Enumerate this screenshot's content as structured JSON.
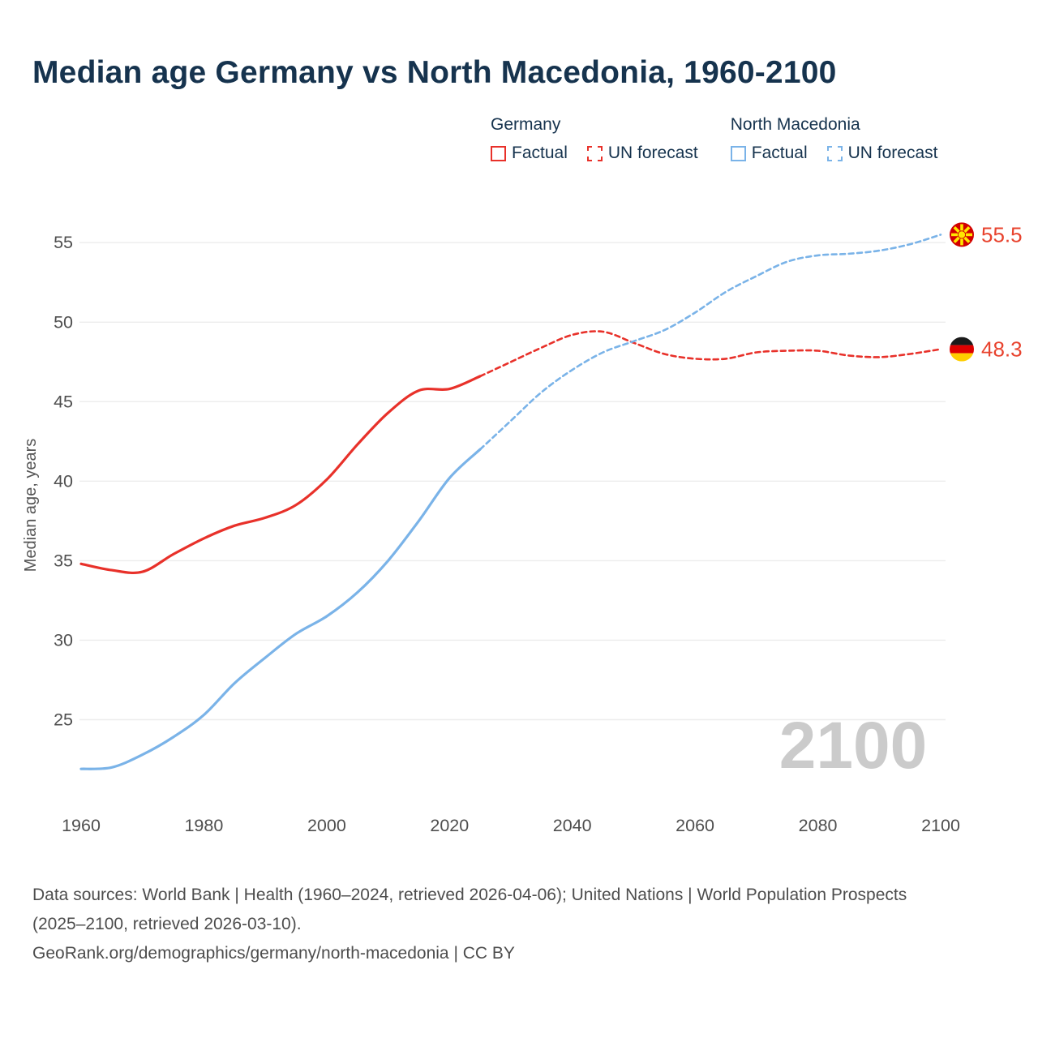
{
  "header": {
    "title": "Median age Germany vs North Macedonia, 1960-2100"
  },
  "legend": {
    "groups": [
      {
        "label": "Germany",
        "color": "#e8312a",
        "items": [
          {
            "label": "Factual",
            "style": "solid"
          },
          {
            "label": "UN forecast",
            "style": "dashed"
          }
        ]
      },
      {
        "label": "North Macedonia",
        "color": "#7ab3e8",
        "items": [
          {
            "label": "Factual",
            "style": "solid"
          },
          {
            "label": "UN forecast",
            "style": "dashed"
          }
        ]
      }
    ]
  },
  "watermark": "2100",
  "footer": {
    "sources": "Data sources: World Bank | Health (1960–2024, retrieved 2026-04-06); United Nations | World Population Prospects (2025–2100, retrieved 2026-03-10).",
    "attribution": "GeoRank.org/demographics/germany/north-macedonia | CC BY"
  },
  "chart_data": {
    "type": "line",
    "title": "Median age Germany vs North Macedonia, 1960-2100",
    "xlabel": "",
    "ylabel": "Median age, years",
    "x": [
      1960,
      1965,
      1970,
      1975,
      1980,
      1985,
      1990,
      1995,
      2000,
      2005,
      2010,
      2015,
      2020,
      2025,
      2030,
      2035,
      2040,
      2045,
      2050,
      2055,
      2060,
      2065,
      2070,
      2075,
      2080,
      2085,
      2090,
      2095,
      2100
    ],
    "forecast_from": 2025,
    "series": [
      {
        "name": "Germany",
        "color": "#e8312a",
        "flag": "de",
        "end_label": "48.3",
        "end_label_color": "#e8432e",
        "values": [
          34.8,
          34.4,
          34.3,
          35.4,
          36.4,
          37.2,
          37.7,
          38.5,
          40.1,
          42.3,
          44.3,
          45.7,
          45.8,
          46.6,
          47.5,
          48.4,
          49.2,
          49.4,
          48.7,
          48.0,
          47.7,
          47.7,
          48.1,
          48.2,
          48.2,
          47.9,
          47.8,
          48.0,
          48.3
        ]
      },
      {
        "name": "North Macedonia",
        "color": "#7ab3e8",
        "flag": "mk",
        "end_label": "55.5",
        "end_label_color": "#e8432e",
        "values": [
          21.9,
          22.0,
          22.8,
          23.9,
          25.3,
          27.3,
          28.9,
          30.4,
          31.5,
          33.0,
          35.0,
          37.5,
          40.2,
          42.0,
          43.8,
          45.6,
          47.0,
          48.1,
          48.8,
          49.5,
          50.6,
          51.9,
          52.9,
          53.8,
          54.2,
          54.3,
          54.5,
          54.9,
          55.5
        ]
      }
    ],
    "xticks": [
      1960,
      1980,
      2000,
      2020,
      2040,
      2060,
      2080,
      2100
    ],
    "yticks": [
      25,
      30,
      35,
      40,
      45,
      50,
      55
    ],
    "xlim": [
      1960,
      2100
    ],
    "ylim": [
      21.3,
      57
    ],
    "grid": "horizontal",
    "legend_position": "top-right"
  }
}
